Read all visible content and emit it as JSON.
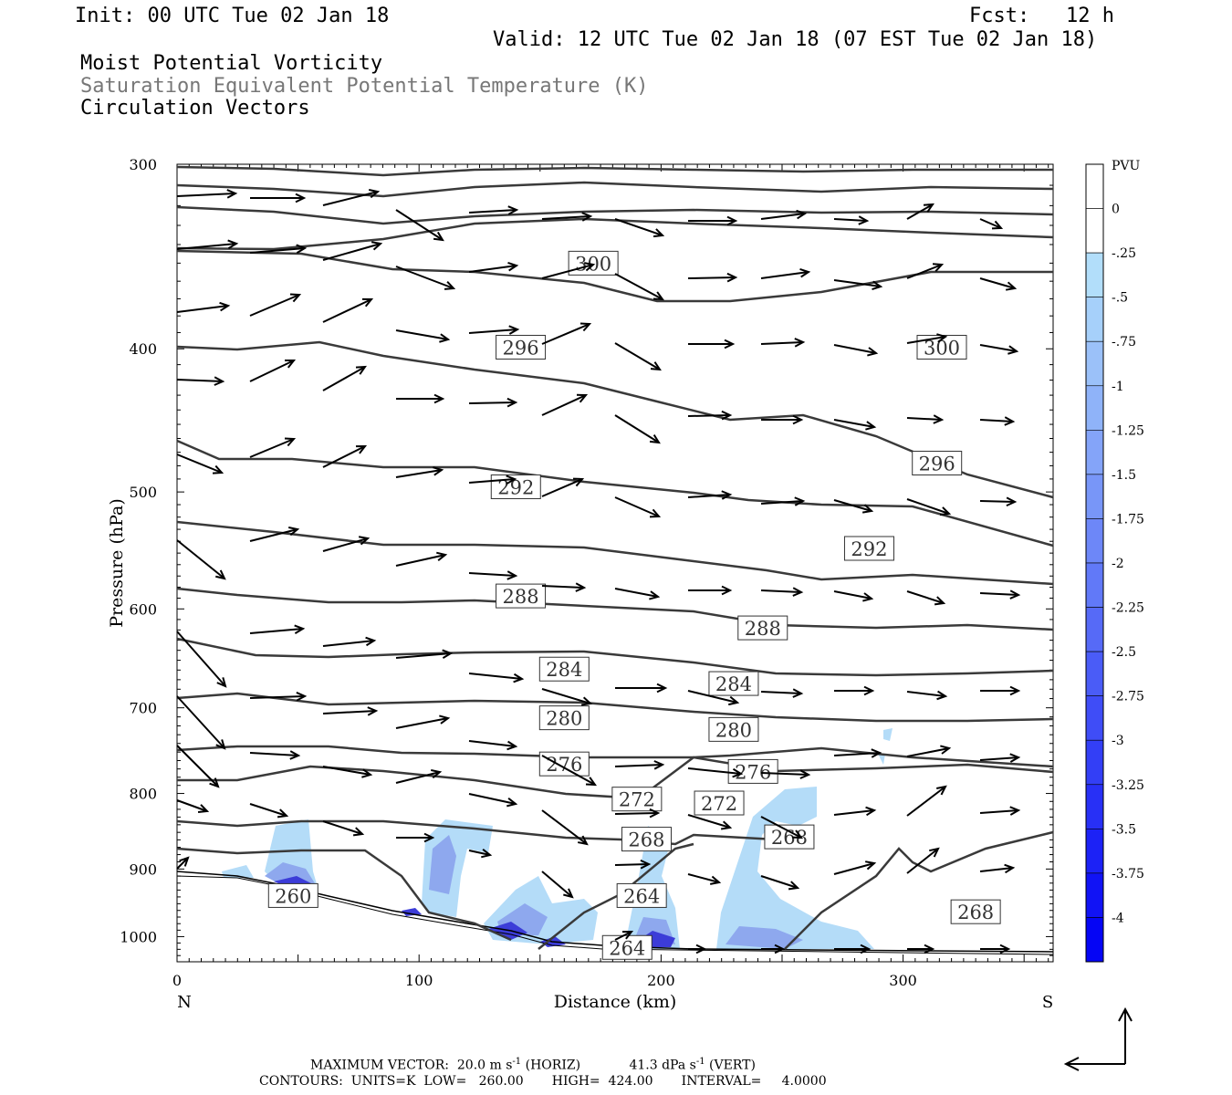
{
  "header": {
    "init": "Init: 00 UTC Tue 02 Jan 18",
    "fcst_label": "Fcst:",
    "fcst_value": "12 h",
    "valid": "Valid: 12 UTC Tue 02 Jan 18 (07 EST Tue 02 Jan 18)",
    "field1": "Moist Potential Vorticity",
    "field2": "Saturation Equivalent Potential Temperature (K)",
    "field3": "Circulation Vectors"
  },
  "colors": {
    "contour": "#3a3a3a",
    "fill_light": "#b4dcf8",
    "fill_mid": "#8ea8ee",
    "fill_dark": "#3c3cd8",
    "fill_darkest": "#0a0af0"
  },
  "chart_data": {
    "type": "cross-section",
    "xlabel": "Distance (km)",
    "ylabel": "Pressure (hPa)",
    "xlim": [
      0,
      362
    ],
    "ylim": [
      1040,
      300
    ],
    "y_log_scale": true,
    "x_ticks": [
      "0",
      "100",
      "200",
      "300"
    ],
    "y_ticks": [
      "300",
      "400",
      "500",
      "600",
      "700",
      "800",
      "900",
      "1000"
    ],
    "left_end_label": "N",
    "right_end_label": "S",
    "contour_labels": [
      {
        "text": "300",
        "x": 172,
        "p": 350
      },
      {
        "text": "300",
        "x": 316,
        "p": 399
      },
      {
        "text": "296",
        "x": 142,
        "p": 399
      },
      {
        "text": "296",
        "x": 314,
        "p": 478
      },
      {
        "text": "292",
        "x": 140,
        "p": 496
      },
      {
        "text": "292",
        "x": 286,
        "p": 546
      },
      {
        "text": "288",
        "x": 142,
        "p": 588
      },
      {
        "text": "288",
        "x": 242,
        "p": 618
      },
      {
        "text": "284",
        "x": 160,
        "p": 659
      },
      {
        "text": "284",
        "x": 230,
        "p": 674
      },
      {
        "text": "280",
        "x": 160,
        "p": 711
      },
      {
        "text": "280",
        "x": 230,
        "p": 724
      },
      {
        "text": "276",
        "x": 160,
        "p": 764
      },
      {
        "text": "276",
        "x": 238,
        "p": 773
      },
      {
        "text": "272",
        "x": 190,
        "p": 807
      },
      {
        "text": "272",
        "x": 224,
        "p": 812
      },
      {
        "text": "268",
        "x": 194,
        "p": 859
      },
      {
        "text": "268",
        "x": 253,
        "p": 856
      },
      {
        "text": "268",
        "x": 330,
        "p": 962
      },
      {
        "text": "264",
        "x": 192,
        "p": 938
      },
      {
        "text": "264",
        "x": 186,
        "p": 1017
      },
      {
        "text": "260",
        "x": 48,
        "p": 938
      }
    ],
    "colorbar": {
      "title": "PVU",
      "labels": [
        "0",
        "-.25",
        "-.5",
        "-.75",
        "-1",
        "-1.25",
        "-1.5",
        "-1.75",
        "-2",
        "-2.25",
        "-2.5",
        "-2.75",
        "-3",
        "-3.25",
        "-3.5",
        "-3.75",
        "-4"
      ]
    },
    "footer": {
      "max_vector": "MAXIMUM VECTOR:  20.0 m s",
      "max_vector_horiz": "(HORIZ)",
      "max_vector_vert": "41.3 dPa s",
      "max_vector_vert_unit": "(VERT)",
      "exp": "-1",
      "contours": "CONTOURS:  UNITS=K  LOW=   260.00       HIGH=  424.00       INTERVAL=     4.0000"
    }
  }
}
